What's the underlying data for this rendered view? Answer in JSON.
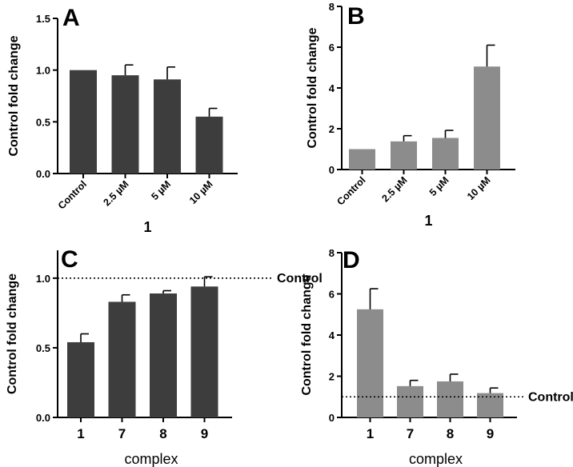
{
  "chart_data": [
    {
      "panel": "A",
      "type": "bar",
      "ylabel": "Control fold change",
      "xlabel": "1",
      "categories": [
        "Control",
        "2.5 µM",
        "5 µM",
        "10 µM"
      ],
      "values": [
        1.0,
        0.95,
        0.91,
        0.55
      ],
      "errors": [
        0,
        0.1,
        0.12,
        0.08
      ],
      "ylim": [
        0,
        1.5
      ],
      "yticks": [
        "0.0",
        "0.5",
        "1.0",
        "1.5"
      ],
      "bar_color": "#3d3d3d",
      "rotated_labels": true
    },
    {
      "panel": "B",
      "type": "bar",
      "ylabel": "Control fold change",
      "xlabel": "1",
      "categories": [
        "Control",
        "2.5 µM",
        "5 µM",
        "10 µM"
      ],
      "values": [
        1.0,
        1.38,
        1.55,
        5.05
      ],
      "errors": [
        0,
        0.28,
        0.37,
        1.05
      ],
      "ylim": [
        0,
        8
      ],
      "yticks": [
        "0",
        "2",
        "4",
        "6",
        "8"
      ],
      "bar_color": "#8c8c8c",
      "rotated_labels": true
    },
    {
      "panel": "C",
      "type": "bar",
      "ylabel": "Control fold change",
      "xlabel": "complex",
      "categories": [
        "1",
        "7",
        "8",
        "9"
      ],
      "values": [
        0.54,
        0.83,
        0.89,
        0.94
      ],
      "errors": [
        0.06,
        0.05,
        0.02,
        0.07
      ],
      "ylim": [
        0,
        1.2
      ],
      "yticks": [
        "0.0",
        "0.5",
        "1.0"
      ],
      "bar_color": "#3d3d3d",
      "reference_line": {
        "value": 1.0,
        "label": "Control"
      },
      "rotated_labels": false
    },
    {
      "panel": "D",
      "type": "bar",
      "ylabel": "Control fold change",
      "xlabel": "complex",
      "categories": [
        "1",
        "7",
        "8",
        "9"
      ],
      "values": [
        5.25,
        1.52,
        1.75,
        1.18
      ],
      "errors": [
        1.0,
        0.28,
        0.35,
        0.25
      ],
      "ylim": [
        0,
        8
      ],
      "yticks": [
        "0",
        "2",
        "4",
        "6",
        "8"
      ],
      "bar_color": "#8c8c8c",
      "reference_line": {
        "value": 1.0,
        "label": "Control"
      },
      "rotated_labels": false
    }
  ]
}
